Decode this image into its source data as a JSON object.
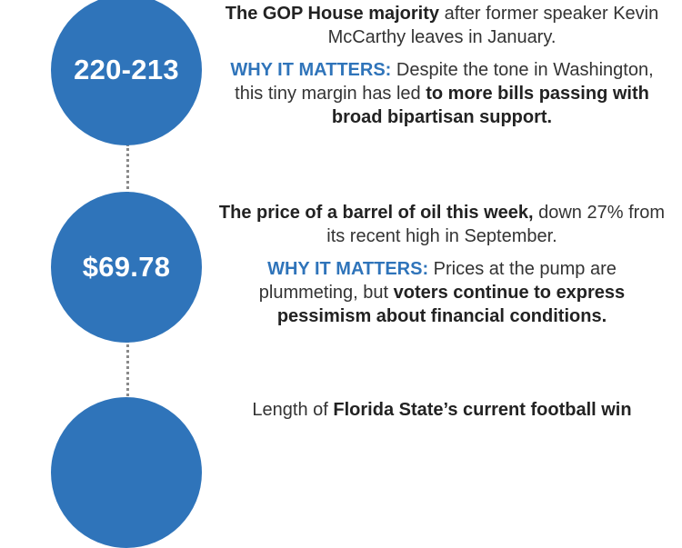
{
  "items": [
    {
      "stat": "220-213",
      "desc_bold": "The GOP House majority",
      "desc_rest": " after former speaker Kevin McCarthy leaves in January.",
      "why_label": "WHY IT MATTERS:",
      "why_text": " Despite the tone in Washington, this tiny margin has led ",
      "why_bold": "to more bills passing with broad bipartisan support."
    },
    {
      "stat": "$69.78",
      "desc_bold": "The price of a barrel of oil this week,",
      "desc_rest": " down 27% from its recent high in September.",
      "why_label": "WHY IT MATTERS:",
      "why_text": " Prices at the pump are plummeting, but ",
      "why_bold": "voters continue to express pessimism about financial conditions."
    },
    {
      "stat": "",
      "desc_pre": "Length of ",
      "desc_bold": "Florida State’s current football win"
    }
  ],
  "colors": {
    "circle": "#2f74ba",
    "why_label": "#2f74ba",
    "connector": "#8a8a8a"
  }
}
